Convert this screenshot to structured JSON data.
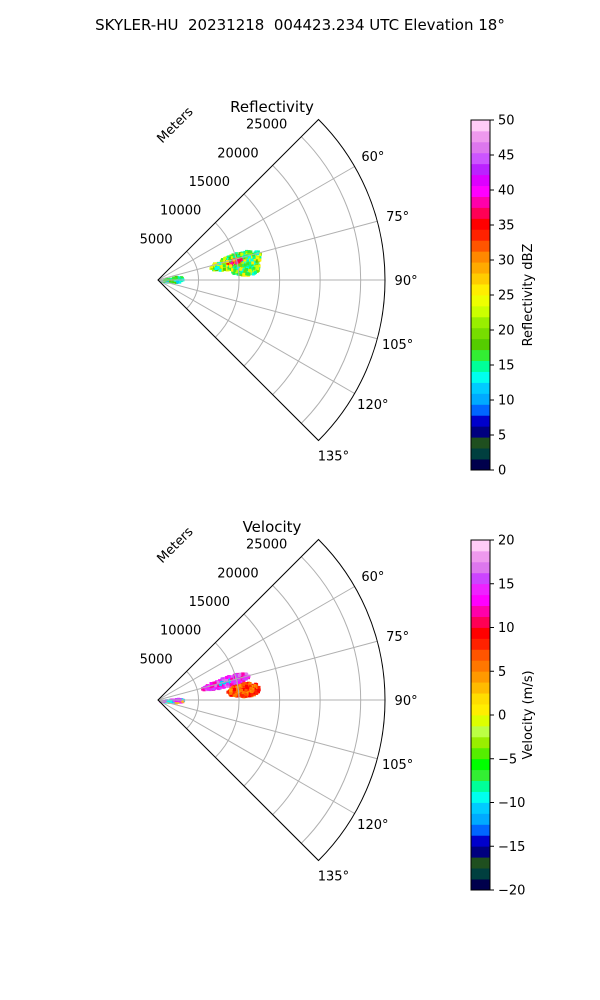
{
  "figure_title": "SKYLER-HU  20231218  004423.234 UTC Elevation 18°",
  "chart_data": [
    {
      "type": "polar-sector",
      "title": "Reflectivity",
      "range_label": "Meters",
      "range_ticks": [
        5000,
        10000,
        15000,
        20000,
        25000
      ],
      "range_tick_labels": [
        "5000",
        "10000",
        "15000",
        "20000",
        "25000"
      ],
      "rmax": 28000,
      "azimuth_range_deg": [
        45,
        135
      ],
      "azimuth_ticks_deg": [
        60,
        75,
        90,
        105,
        120,
        135
      ],
      "azimuth_tick_labels": [
        "60°",
        "75°",
        "90°",
        "105°",
        "120°",
        "135°"
      ],
      "grid": true,
      "colorbar": {
        "label": "Reflectivity dBZ",
        "range": [
          0,
          50
        ],
        "ticks": [
          0,
          5,
          10,
          15,
          20,
          25,
          30,
          35,
          40,
          45,
          50
        ],
        "tick_labels": [
          "0",
          "5",
          "10",
          "15",
          "20",
          "25",
          "30",
          "35",
          "40",
          "45",
          "50"
        ],
        "colors": [
          "#00004c",
          "#003f3f",
          "#1f4f1f",
          "#00007f",
          "#0000cc",
          "#0066ff",
          "#00aaff",
          "#00ccff",
          "#00ffee",
          "#00ff99",
          "#33ee33",
          "#55cc00",
          "#77dd00",
          "#99ee00",
          "#ccff00",
          "#eeff00",
          "#ffee00",
          "#ffcc00",
          "#ffaa00",
          "#ff8800",
          "#ff5500",
          "#ff2200",
          "#ff0000",
          "#ff0055",
          "#ff00aa",
          "#ff00ff",
          "#dd00ff",
          "#bb22ff",
          "#cc55ff",
          "#dd77ee",
          "#ee99ee",
          "#ffccf8"
        ]
      }
    },
    {
      "type": "polar-sector",
      "title": "Velocity",
      "range_label": "Meters",
      "range_ticks": [
        5000,
        10000,
        15000,
        20000,
        25000
      ],
      "range_tick_labels": [
        "5000",
        "10000",
        "15000",
        "20000",
        "25000"
      ],
      "rmax": 28000,
      "azimuth_range_deg": [
        45,
        135
      ],
      "azimuth_ticks_deg": [
        60,
        75,
        90,
        105,
        120,
        135
      ],
      "azimuth_tick_labels": [
        "60°",
        "75°",
        "90°",
        "105°",
        "120°",
        "135°"
      ],
      "grid": true,
      "colorbar": {
        "label": "Velocity (m/s)",
        "range": [
          -20,
          20
        ],
        "ticks": [
          -20,
          -15,
          -10,
          -5,
          0,
          5,
          10,
          15,
          20
        ],
        "tick_labels": [
          "−20",
          "−15",
          "−10",
          "−5",
          "0",
          "5",
          "10",
          "15",
          "20"
        ],
        "colors": [
          "#00004c",
          "#003f3f",
          "#1f4f1f",
          "#00007f",
          "#0000cc",
          "#0066ff",
          "#00aaff",
          "#00ccff",
          "#00ffee",
          "#00ff99",
          "#33ee33",
          "#00ff00",
          "#55ee00",
          "#99ee00",
          "#bbff44",
          "#ddff00",
          "#ffee00",
          "#ffdd00",
          "#ffbb00",
          "#ff9900",
          "#ff7700",
          "#ff5500",
          "#ff2200",
          "#ff0000",
          "#ff0055",
          "#ff00aa",
          "#ff00ff",
          "#ee22ff",
          "#cc44ff",
          "#dd77ee",
          "#ee99ee",
          "#ffccf8"
        ]
      }
    }
  ],
  "echo_regions": {
    "reflectivity": [
      {
        "az": [
          70,
          81
        ],
        "r": [
          6500,
          13000
        ],
        "colors": [
          "#33ee33",
          "#55cc00",
          "#99ee00",
          "#ccff00",
          "#eeff00",
          "#ffee00",
          "#00ff99",
          "#00ffee"
        ],
        "core": [
          "#ff2200",
          "#ff0055",
          "#ff00aa",
          "#ffcc00"
        ]
      },
      {
        "az": [
          78,
          86
        ],
        "r": [
          9000,
          12500
        ],
        "colors": [
          "#33ee33",
          "#77dd00",
          "#ccff00",
          "#00ff99",
          "#00ffee",
          "#ffee00"
        ],
        "core": []
      },
      {
        "az": [
          75,
          95
        ],
        "r": [
          150,
          3000
        ],
        "colors": [
          "#00ffee",
          "#00ccff",
          "#33ee33",
          "#00ff99",
          "#55cc00"
        ],
        "core": []
      }
    ],
    "velocity": [
      {
        "az": [
          70,
          78
        ],
        "r": [
          5500,
          11500
        ],
        "colors": [
          "#ff00ff",
          "#ee22ff",
          "#cc44ff",
          "#dd77ee",
          "#ff00aa"
        ],
        "core": [
          "#00ccff"
        ]
      },
      {
        "az": [
          78,
          87
        ],
        "r": [
          8500,
          12500
        ],
        "colors": [
          "#ff5500",
          "#ff7700",
          "#ff2200",
          "#ff9900",
          "#ff0000"
        ],
        "core": []
      },
      {
        "az": [
          82,
          95
        ],
        "r": [
          150,
          3000
        ],
        "colors": [
          "#ff00ff",
          "#00ffee",
          "#cc44ff",
          "#ffcc00",
          "#00ccff"
        ],
        "core": []
      }
    ]
  }
}
